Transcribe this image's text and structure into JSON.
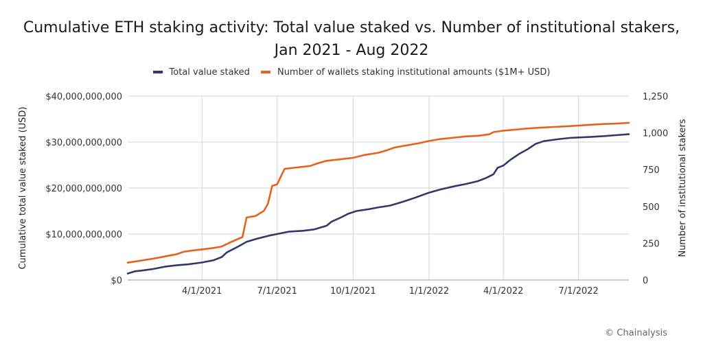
{
  "chart_data": {
    "type": "line",
    "title_lines": [
      "Cumulative ETH staking activity: Total value staked vs. Number of institutional stakers,",
      "Jan 2021 - Aug 2022"
    ],
    "ylabel_left": "Cumulative total value staked (USD)",
    "ylabel_right": "Number of institutional stakers",
    "x_range": [
      "2021-01-01",
      "2022-08-31"
    ],
    "x_ticks": [
      {
        "date": "2021-04-01",
        "label": "4/1/2021"
      },
      {
        "date": "2021-07-01",
        "label": "7/1/2021"
      },
      {
        "date": "2021-10-01",
        "label": "10/1/2021"
      },
      {
        "date": "2022-01-01",
        "label": "1/1/2022"
      },
      {
        "date": "2022-04-01",
        "label": "4/1/2022"
      },
      {
        "date": "2022-07-01",
        "label": "7/1/2022"
      }
    ],
    "y_left": {
      "range": [
        0,
        40000000000
      ],
      "ticks": [
        {
          "value": 0,
          "label": "$0"
        },
        {
          "value": 10000000000,
          "label": "$10,000,000,000"
        },
        {
          "value": 20000000000,
          "label": "$20,000,000,000"
        },
        {
          "value": 30000000000,
          "label": "$30,000,000,000"
        },
        {
          "value": 40000000000,
          "label": "$40,000,000,000"
        }
      ]
    },
    "y_right": {
      "range": [
        0,
        1250
      ],
      "ticks": [
        {
          "value": 0,
          "label": "0"
        },
        {
          "value": 250,
          "label": "250"
        },
        {
          "value": 500,
          "label": "500"
        },
        {
          "value": 750,
          "label": "750"
        },
        {
          "value": 1000,
          "label": "1,000"
        },
        {
          "value": 1250,
          "label": "1,250"
        }
      ]
    },
    "grid": "vertical at x ticks, horizontal at y ticks",
    "legend_position": "top",
    "series": [
      {
        "name": "Total value staked",
        "axis": "left",
        "color": "#2e3a6b",
        "points": [
          [
            "2021-01-01",
            1400000000
          ],
          [
            "2021-01-10",
            1900000000
          ],
          [
            "2021-01-20",
            2100000000
          ],
          [
            "2021-02-01",
            2400000000
          ],
          [
            "2021-02-15",
            2900000000
          ],
          [
            "2021-03-01",
            3200000000
          ],
          [
            "2021-03-15",
            3400000000
          ],
          [
            "2021-04-01",
            3800000000
          ],
          [
            "2021-04-15",
            4300000000
          ],
          [
            "2021-04-25",
            5000000000
          ],
          [
            "2021-05-01",
            6000000000
          ],
          [
            "2021-05-15",
            7300000000
          ],
          [
            "2021-05-25",
            8300000000
          ],
          [
            "2021-06-05",
            8900000000
          ],
          [
            "2021-06-20",
            9600000000
          ],
          [
            "2021-07-01",
            10000000000
          ],
          [
            "2021-07-15",
            10500000000
          ],
          [
            "2021-08-01",
            10700000000
          ],
          [
            "2021-08-15",
            11000000000
          ],
          [
            "2021-08-30",
            11800000000
          ],
          [
            "2021-09-05",
            12700000000
          ],
          [
            "2021-09-15",
            13500000000
          ],
          [
            "2021-09-25",
            14400000000
          ],
          [
            "2021-10-05",
            15000000000
          ],
          [
            "2021-10-20",
            15400000000
          ],
          [
            "2021-11-01",
            15800000000
          ],
          [
            "2021-11-15",
            16200000000
          ],
          [
            "2021-11-30",
            17000000000
          ],
          [
            "2021-12-15",
            17900000000
          ],
          [
            "2022-01-01",
            19000000000
          ],
          [
            "2022-01-15",
            19700000000
          ],
          [
            "2022-02-01",
            20400000000
          ],
          [
            "2022-02-15",
            20900000000
          ],
          [
            "2022-03-01",
            21500000000
          ],
          [
            "2022-03-10",
            22100000000
          ],
          [
            "2022-03-20",
            23000000000
          ],
          [
            "2022-03-25",
            24400000000
          ],
          [
            "2022-04-01",
            24900000000
          ],
          [
            "2022-04-10",
            26200000000
          ],
          [
            "2022-04-20",
            27400000000
          ],
          [
            "2022-05-01",
            28500000000
          ],
          [
            "2022-05-10",
            29600000000
          ],
          [
            "2022-05-20",
            30200000000
          ],
          [
            "2022-06-05",
            30600000000
          ],
          [
            "2022-06-20",
            30900000000
          ],
          [
            "2022-07-01",
            31000000000
          ],
          [
            "2022-07-15",
            31100000000
          ],
          [
            "2022-08-01",
            31300000000
          ],
          [
            "2022-08-15",
            31500000000
          ],
          [
            "2022-08-31",
            31700000000
          ]
        ]
      },
      {
        "name": "Number of wallets staking institutional amounts ($1M+ USD)",
        "axis": "right",
        "color": "#e8601c",
        "points": [
          [
            "2021-01-01",
            118
          ],
          [
            "2021-01-15",
            130
          ],
          [
            "2021-02-01",
            145
          ],
          [
            "2021-02-15",
            160
          ],
          [
            "2021-03-01",
            175
          ],
          [
            "2021-03-10",
            192
          ],
          [
            "2021-03-20",
            200
          ],
          [
            "2021-04-01",
            208
          ],
          [
            "2021-04-15",
            218
          ],
          [
            "2021-04-25",
            228
          ],
          [
            "2021-05-05",
            255
          ],
          [
            "2021-05-15",
            280
          ],
          [
            "2021-05-20",
            292
          ],
          [
            "2021-05-25",
            425
          ],
          [
            "2021-06-05",
            435
          ],
          [
            "2021-06-15",
            470
          ],
          [
            "2021-06-20",
            520
          ],
          [
            "2021-06-25",
            640
          ],
          [
            "2021-07-01",
            650
          ],
          [
            "2021-07-10",
            755
          ],
          [
            "2021-07-25",
            765
          ],
          [
            "2021-08-10",
            775
          ],
          [
            "2021-08-20",
            795
          ],
          [
            "2021-08-30",
            810
          ],
          [
            "2021-09-15",
            820
          ],
          [
            "2021-10-01",
            830
          ],
          [
            "2021-10-15",
            850
          ],
          [
            "2021-11-01",
            865
          ],
          [
            "2021-11-10",
            880
          ],
          [
            "2021-11-20",
            900
          ],
          [
            "2021-12-05",
            915
          ],
          [
            "2021-12-20",
            930
          ],
          [
            "2022-01-01",
            945
          ],
          [
            "2022-01-15",
            958
          ],
          [
            "2022-02-01",
            968
          ],
          [
            "2022-02-15",
            976
          ],
          [
            "2022-03-01",
            980
          ],
          [
            "2022-03-15",
            990
          ],
          [
            "2022-03-20",
            1005
          ],
          [
            "2022-04-01",
            1015
          ],
          [
            "2022-04-15",
            1022
          ],
          [
            "2022-05-01",
            1030
          ],
          [
            "2022-05-15",
            1035
          ],
          [
            "2022-06-01",
            1040
          ],
          [
            "2022-06-15",
            1044
          ],
          [
            "2022-07-01",
            1050
          ],
          [
            "2022-07-15",
            1055
          ],
          [
            "2022-08-01",
            1060
          ],
          [
            "2022-08-15",
            1063
          ],
          [
            "2022-08-31",
            1068
          ]
        ]
      }
    ]
  },
  "source_note": "© Chainalysis"
}
